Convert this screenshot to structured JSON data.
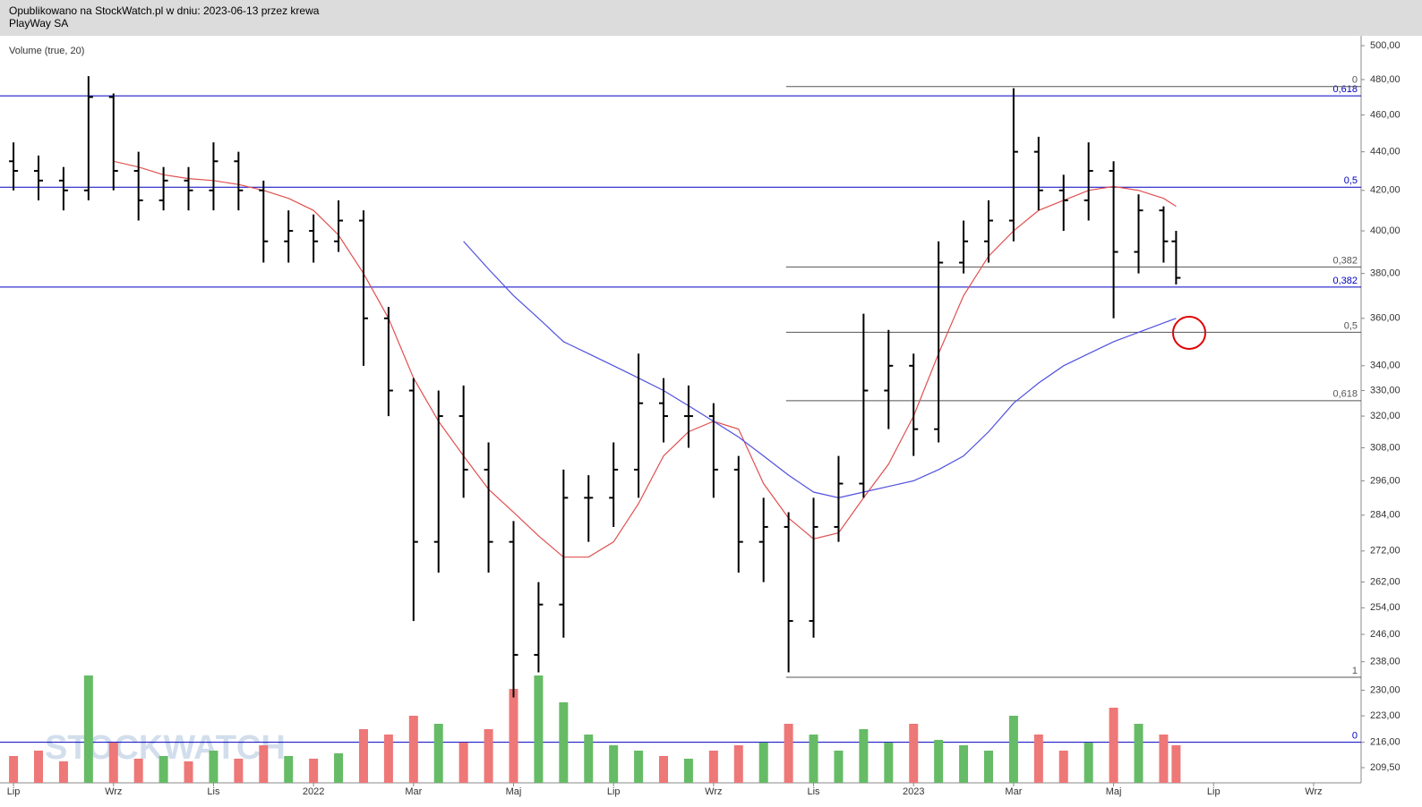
{
  "header": {
    "line1": "Opublikowano na StockWatch.pl w dniu: 2023-06-13 przez krewa",
    "line2": "PlayWay SA"
  },
  "chart_data": {
    "type": "ohlc",
    "indicator_label": "Volume (true, 20)",
    "watermark": "STOCKWATCH",
    "log_scale": true,
    "x": [
      0,
      0.5,
      1,
      1.5,
      2,
      2.5,
      3,
      3.5,
      4,
      4.5,
      5,
      5.5,
      6,
      6.5,
      7,
      7.5,
      8,
      8.5,
      9,
      9.5,
      10,
      10.5,
      11,
      11.5,
      12,
      12.5,
      13,
      13.5,
      14,
      14.5,
      15,
      15.5,
      16,
      16.5,
      17,
      17.5,
      18,
      18.5,
      19,
      19.5,
      20,
      20.5,
      21,
      21.5,
      22,
      22.5,
      23,
      23.25
    ],
    "open": [
      435,
      430,
      425,
      420,
      470,
      430,
      415,
      425,
      420,
      435,
      420,
      395,
      400,
      395,
      405,
      360,
      330,
      275,
      320,
      300,
      275,
      240,
      255,
      290,
      290,
      300,
      325,
      320,
      320,
      300,
      275,
      280,
      250,
      280,
      295,
      330,
      340,
      315,
      385,
      395,
      405,
      440,
      420,
      415,
      430,
      390,
      410,
      395
    ],
    "high": [
      445,
      438,
      432,
      482,
      472,
      440,
      432,
      432,
      445,
      440,
      425,
      410,
      408,
      415,
      410,
      365,
      335,
      330,
      332,
      310,
      282,
      262,
      300,
      298,
      310,
      345,
      335,
      332,
      325,
      305,
      290,
      285,
      290,
      305,
      362,
      355,
      345,
      395,
      405,
      415,
      475,
      448,
      428,
      445,
      435,
      418,
      412,
      400
    ],
    "low": [
      420,
      415,
      410,
      415,
      420,
      405,
      410,
      410,
      410,
      410,
      385,
      385,
      385,
      390,
      340,
      320,
      250,
      265,
      290,
      265,
      228,
      235,
      245,
      275,
      280,
      290,
      310,
      308,
      290,
      265,
      262,
      235,
      245,
      275,
      290,
      315,
      305,
      310,
      380,
      385,
      395,
      410,
      400,
      405,
      360,
      380,
      385,
      375
    ],
    "close": [
      430,
      425,
      420,
      470,
      430,
      415,
      425,
      420,
      435,
      420,
      395,
      400,
      395,
      405,
      360,
      330,
      275,
      320,
      300,
      275,
      240,
      255,
      290,
      290,
      300,
      325,
      320,
      320,
      300,
      275,
      280,
      250,
      280,
      295,
      330,
      340,
      315,
      385,
      395,
      405,
      440,
      420,
      415,
      430,
      390,
      410,
      395,
      378
    ],
    "volume": [
      10,
      12,
      8,
      40,
      15,
      9,
      10,
      8,
      12,
      9,
      14,
      10,
      9,
      11,
      20,
      18,
      25,
      22,
      15,
      20,
      35,
      40,
      30,
      18,
      14,
      12,
      10,
      9,
      12,
      14,
      15,
      22,
      18,
      12,
      20,
      15,
      22,
      16,
      14,
      12,
      25,
      18,
      12,
      15,
      28,
      22,
      18,
      14
    ],
    "series": [
      {
        "color": "#e05050",
        "values": [
          null,
          null,
          null,
          null,
          435,
          432,
          428,
          426,
          425,
          423,
          420,
          416,
          410,
          398,
          380,
          360,
          335,
          318,
          305,
          293,
          285,
          277,
          270,
          270,
          275,
          288,
          305,
          314,
          318,
          315,
          295,
          283,
          276,
          278,
          290,
          302,
          320,
          345,
          370,
          388,
          400,
          410,
          415,
          420,
          422,
          420,
          416,
          412
        ]
      },
      {
        "color": "#5050e0",
        "values": [
          null,
          null,
          null,
          null,
          null,
          null,
          null,
          null,
          null,
          null,
          null,
          null,
          null,
          null,
          null,
          null,
          null,
          null,
          395,
          382,
          370,
          360,
          350,
          345,
          340,
          335,
          330,
          324,
          318,
          312,
          305,
          298,
          292,
          290,
          292,
          294,
          296,
          300,
          305,
          314,
          325,
          333,
          340,
          345,
          350,
          354,
          358,
          360
        ]
      }
    ],
    "levels": [
      {
        "value": 470.7,
        "label": "0,618",
        "color": "#0000c0",
        "start": -0.27
      },
      {
        "value": 421.6,
        "label": "0,5",
        "color": "#0000c0",
        "start": -0.27
      },
      {
        "value": 373.8,
        "label": "0,382",
        "color": "#0000c0",
        "start": -0.27
      },
      {
        "value": 216,
        "label": "0",
        "color": "#0000c0",
        "start": -0.27
      },
      {
        "value": 476,
        "label": "0",
        "color": "#555555",
        "start": 15.45
      },
      {
        "value": 383,
        "label": "0,382",
        "color": "#555555",
        "start": 15.45
      },
      {
        "value": 354,
        "label": "0,5",
        "color": "#555555",
        "start": 15.45
      },
      {
        "value": 326,
        "label": "0,618",
        "color": "#555555",
        "start": 15.45
      },
      {
        "value": 233.6,
        "label": "1",
        "color": "#555555",
        "start": 15.45
      }
    ],
    "xlim": [
      -0.27,
      26.95
    ],
    "ylim": [
      205.7,
      506
    ],
    "xticks": [
      {
        "value": 0,
        "label": "Lip"
      },
      {
        "value": 2,
        "label": "Wrz"
      },
      {
        "value": 4,
        "label": "Lis"
      },
      {
        "value": 6,
        "label": "2022"
      },
      {
        "value": 8,
        "label": "Mar"
      },
      {
        "value": 10,
        "label": "Maj"
      },
      {
        "value": 12,
        "label": "Lip"
      },
      {
        "value": 14,
        "label": "Wrz"
      },
      {
        "value": 16,
        "label": "Lis"
      },
      {
        "value": 18,
        "label": "2023"
      },
      {
        "value": 20,
        "label": "Mar"
      },
      {
        "value": 22,
        "label": "Maj"
      },
      {
        "value": 24,
        "label": "Lip"
      },
      {
        "value": 26,
        "label": "Wrz"
      }
    ],
    "yticks": [
      {
        "value": 500,
        "label": "500,00"
      },
      {
        "value": 480,
        "label": "480,00"
      },
      {
        "value": 460,
        "label": "460,00"
      },
      {
        "value": 440,
        "label": "440,00"
      },
      {
        "value": 420,
        "label": "420,00"
      },
      {
        "value": 400,
        "label": "400,00"
      },
      {
        "value": 380,
        "label": "380,00"
      },
      {
        "value": 360,
        "label": "360,00"
      },
      {
        "value": 340,
        "label": "340,00"
      },
      {
        "value": 330,
        "label": "330,00"
      },
      {
        "value": 320,
        "label": "320,00"
      },
      {
        "value": 308,
        "label": "308,00"
      },
      {
        "value": 296,
        "label": "296,00"
      },
      {
        "value": 284,
        "label": "284,00"
      },
      {
        "value": 272,
        "label": "272,00"
      },
      {
        "value": 262,
        "label": "262,00"
      },
      {
        "value": 254,
        "label": "254,00"
      },
      {
        "value": 246,
        "label": "246,00"
      },
      {
        "value": 238,
        "label": "238,00"
      },
      {
        "value": 230,
        "label": "230,00"
      },
      {
        "value": 223,
        "label": "223,00"
      },
      {
        "value": 216,
        "label": "216,00"
      },
      {
        "value": 209.5,
        "label": "209,50"
      }
    ]
  }
}
